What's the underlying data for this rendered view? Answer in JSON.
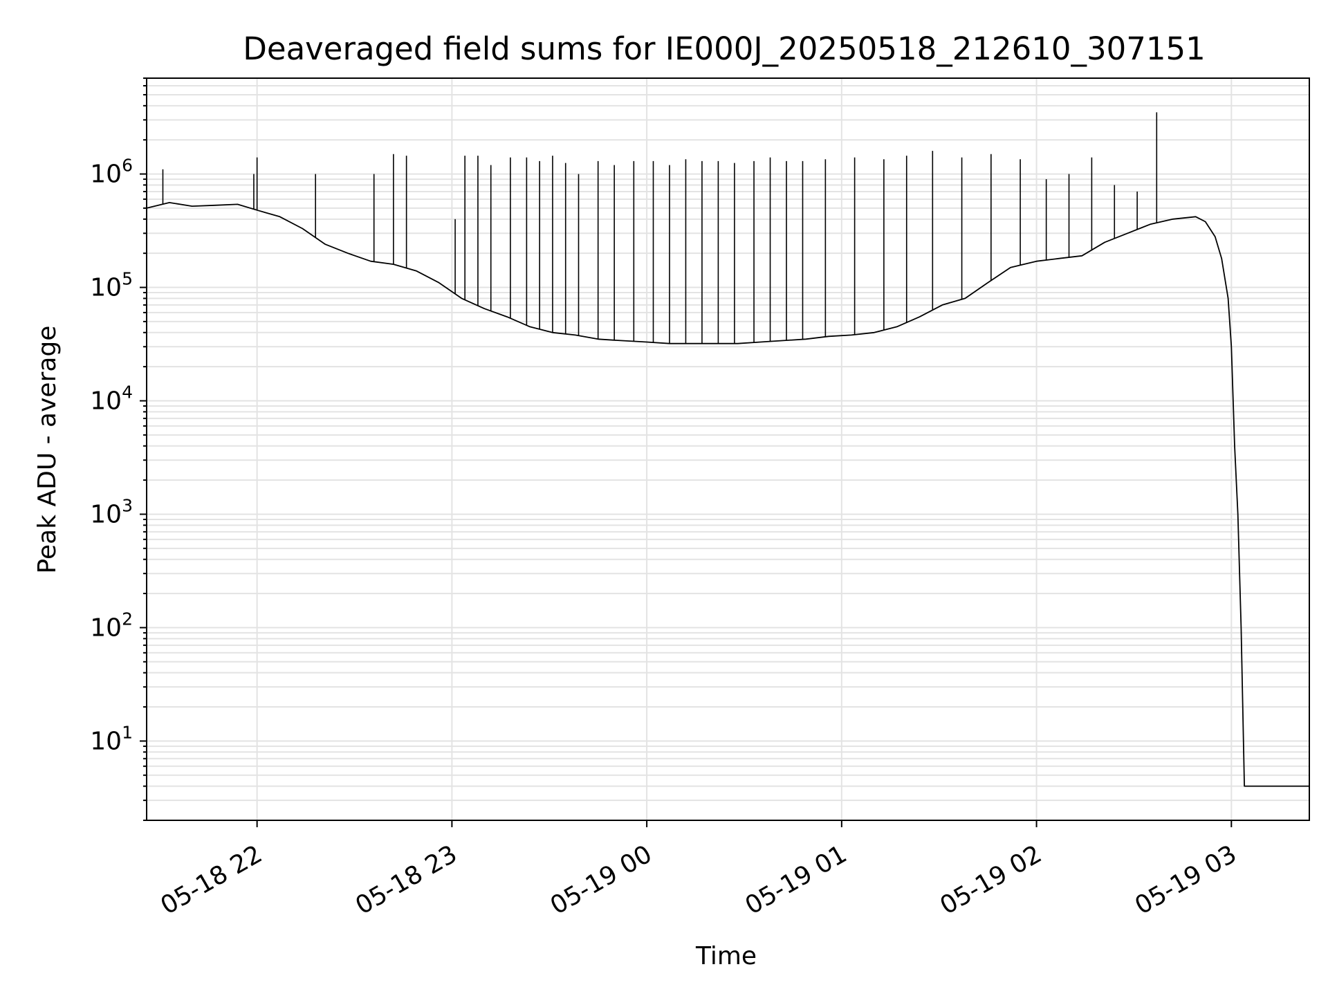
{
  "chart_data": {
    "type": "line",
    "title": "Deaveraged field sums for IE000J_20250518_212610_307151",
    "xlabel": "Time",
    "ylabel": "Peak ADU - average",
    "x_scale": "time",
    "y_scale": "log",
    "xlim": [
      "05-18 21:26",
      "05-19 03:24"
    ],
    "ylim": [
      2,
      7000000
    ],
    "x_ticks": [
      {
        "value": "05-18 22:00",
        "label": "05-18 22"
      },
      {
        "value": "05-18 23:00",
        "label": "05-18 23"
      },
      {
        "value": "05-19 00:00",
        "label": "05-19 00"
      },
      {
        "value": "05-19 01:00",
        "label": "05-19 01"
      },
      {
        "value": "05-19 02:00",
        "label": "05-19 02"
      },
      {
        "value": "05-19 03:00",
        "label": "05-19 03"
      }
    ],
    "y_ticks": [
      {
        "value": 10,
        "base": "10",
        "exp": "1"
      },
      {
        "value": 100,
        "base": "10",
        "exp": "2"
      },
      {
        "value": 1000,
        "base": "10",
        "exp": "3"
      },
      {
        "value": 10000,
        "base": "10",
        "exp": "4"
      },
      {
        "value": 100000,
        "base": "10",
        "exp": "5"
      },
      {
        "value": 1000000,
        "base": "10",
        "exp": "6"
      }
    ],
    "grid": true,
    "line_color": "#000000",
    "grid_color": "#e3e3e3",
    "series": [
      {
        "values": [
          [
            "05-18 21:26",
            500000
          ],
          [
            "05-18 21:33",
            560000
          ],
          [
            "05-18 21:40",
            520000
          ],
          [
            "05-18 21:47",
            530000
          ],
          [
            "05-18 21:54",
            540000
          ],
          [
            "05-18 22:00",
            480000
          ],
          [
            "05-18 22:07",
            420000
          ],
          [
            "05-18 22:14",
            330000
          ],
          [
            "05-18 22:21",
            240000
          ],
          [
            "05-18 22:28",
            200000
          ],
          [
            "05-18 22:35",
            170000
          ],
          [
            "05-18 22:42",
            160000
          ],
          [
            "05-18 22:49",
            140000
          ],
          [
            "05-18 22:56",
            110000
          ],
          [
            "05-18 23:03",
            80000
          ],
          [
            "05-18 23:10",
            65000
          ],
          [
            "05-18 23:17",
            55000
          ],
          [
            "05-18 23:24",
            45000
          ],
          [
            "05-18 23:31",
            40000
          ],
          [
            "05-18 23:38",
            38000
          ],
          [
            "05-18 23:45",
            35000
          ],
          [
            "05-18 23:52",
            34000
          ],
          [
            "05-19 00:00",
            33000
          ],
          [
            "05-19 00:07",
            32000
          ],
          [
            "05-19 00:14",
            32000
          ],
          [
            "05-19 00:21",
            32000
          ],
          [
            "05-19 00:28",
            32000
          ],
          [
            "05-19 00:35",
            33000
          ],
          [
            "05-19 00:42",
            34000
          ],
          [
            "05-19 00:49",
            35000
          ],
          [
            "05-19 00:56",
            37000
          ],
          [
            "05-19 01:03",
            38000
          ],
          [
            "05-19 01:10",
            40000
          ],
          [
            "05-19 01:17",
            45000
          ],
          [
            "05-19 01:24",
            55000
          ],
          [
            "05-19 01:31",
            70000
          ],
          [
            "05-19 01:38",
            80000
          ],
          [
            "05-19 01:45",
            110000
          ],
          [
            "05-19 01:52",
            150000
          ],
          [
            "05-19 02:00",
            170000
          ],
          [
            "05-19 02:07",
            180000
          ],
          [
            "05-19 02:14",
            190000
          ],
          [
            "05-19 02:21",
            250000
          ],
          [
            "05-19 02:28",
            300000
          ],
          [
            "05-19 02:35",
            360000
          ],
          [
            "05-19 02:42",
            400000
          ],
          [
            "05-19 02:49",
            420000
          ],
          [
            "05-19 02:52",
            380000
          ],
          [
            "05-19 02:55",
            280000
          ],
          [
            "05-19 02:57",
            180000
          ],
          [
            "05-19 02:59",
            80000
          ],
          [
            "05-19 03:00",
            30000
          ],
          [
            "05-19 03:01",
            4000
          ],
          [
            "05-19 03:02",
            1000
          ],
          [
            "05-19 03:03",
            100
          ],
          [
            "05-19 03:04",
            4
          ],
          [
            "05-19 03:24",
            4
          ]
        ],
        "spikes": [
          [
            "05-18 21:31",
            1100000
          ],
          [
            "05-18 21:59",
            1000000
          ],
          [
            "05-18 22:00",
            1400000
          ],
          [
            "05-18 22:18",
            1000000
          ],
          [
            "05-18 22:36",
            1000000
          ],
          [
            "05-18 22:42",
            1500000
          ],
          [
            "05-18 22:46",
            1450000
          ],
          [
            "05-18 23:01",
            400000
          ],
          [
            "05-18 23:04",
            1450000
          ],
          [
            "05-18 23:08",
            1450000
          ],
          [
            "05-18 23:12",
            1200000
          ],
          [
            "05-18 23:18",
            1400000
          ],
          [
            "05-18 23:23",
            1400000
          ],
          [
            "05-18 23:27",
            1300000
          ],
          [
            "05-18 23:31",
            1450000
          ],
          [
            "05-18 23:35",
            1250000
          ],
          [
            "05-18 23:39",
            1000000
          ],
          [
            "05-18 23:45",
            1300000
          ],
          [
            "05-18 23:50",
            1200000
          ],
          [
            "05-18 23:56",
            1300000
          ],
          [
            "05-19 00:02",
            1300000
          ],
          [
            "05-19 00:07",
            1200000
          ],
          [
            "05-19 00:12",
            1350000
          ],
          [
            "05-19 00:17",
            1300000
          ],
          [
            "05-19 00:22",
            1300000
          ],
          [
            "05-19 00:27",
            1250000
          ],
          [
            "05-19 00:33",
            1300000
          ],
          [
            "05-19 00:38",
            1400000
          ],
          [
            "05-19 00:43",
            1300000
          ],
          [
            "05-19 00:48",
            1300000
          ],
          [
            "05-19 00:55",
            1350000
          ],
          [
            "05-19 01:04",
            1400000
          ],
          [
            "05-19 01:13",
            1350000
          ],
          [
            "05-19 01:20",
            1450000
          ],
          [
            "05-19 01:28",
            1600000
          ],
          [
            "05-19 01:37",
            1400000
          ],
          [
            "05-19 01:46",
            1500000
          ],
          [
            "05-19 01:55",
            1350000
          ],
          [
            "05-19 02:03",
            900000
          ],
          [
            "05-19 02:10",
            1000000
          ],
          [
            "05-19 02:17",
            1400000
          ],
          [
            "05-19 02:24",
            800000
          ],
          [
            "05-19 02:31",
            700000
          ],
          [
            "05-19 02:37",
            3500000
          ]
        ]
      }
    ]
  }
}
